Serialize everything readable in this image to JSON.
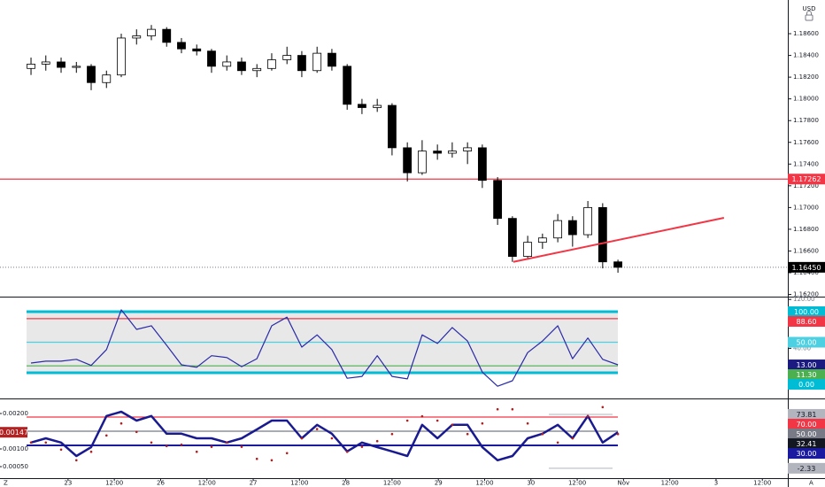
{
  "ui": {
    "left": "Z",
    "right": "A"
  },
  "chart_data": [
    {
      "type": "candlestick",
      "currency": "USD",
      "xlim": [
        -1.47,
        15.55
      ],
      "xticks": [
        {
          "value": 0,
          "label": "23"
        },
        {
          "value": 1,
          "label": "12:00"
        },
        {
          "value": 2,
          "label": "26"
        },
        {
          "value": 3,
          "label": "12:00"
        },
        {
          "value": 4,
          "label": "27"
        },
        {
          "value": 5,
          "label": "12:00"
        },
        {
          "value": 6,
          "label": "28"
        },
        {
          "value": 7,
          "label": "12:00"
        },
        {
          "value": 8,
          "label": "29"
        },
        {
          "value": 9,
          "label": "12:00"
        },
        {
          "value": 10,
          "label": "30"
        },
        {
          "value": 11,
          "label": "12:00"
        },
        {
          "value": 12,
          "label": "Nov"
        },
        {
          "value": 13,
          "label": "12:00"
        },
        {
          "value": 14,
          "label": "3"
        },
        {
          "value": 15,
          "label": "12:00"
        }
      ],
      "x": [
        -0.8,
        -0.48,
        -0.15,
        0.18,
        0.5,
        0.83,
        1.15,
        1.48,
        1.8,
        2.13,
        2.45,
        2.78,
        3.1,
        3.43,
        3.75,
        4.08,
        4.4,
        4.73,
        5.05,
        5.38,
        5.7,
        6.03,
        6.35,
        6.68,
        7,
        7.33,
        7.65,
        7.98,
        8.3,
        8.63,
        8.95,
        9.28,
        9.6,
        9.93,
        10.25,
        10.58,
        10.9,
        11.23,
        11.55,
        11.88
      ],
      "candles": [
        [
          1.1828,
          1.1838,
          1.1822,
          1.1832
        ],
        [
          1.1832,
          1.184,
          1.1826,
          1.1834
        ],
        [
          1.1834,
          1.1838,
          1.1824,
          1.1829
        ],
        [
          1.1829,
          1.1834,
          1.1824,
          1.183
        ],
        [
          1.183,
          1.1832,
          1.1808,
          1.1815
        ],
        [
          1.1815,
          1.1826,
          1.181,
          1.1822
        ],
        [
          1.1822,
          1.186,
          1.182,
          1.1856
        ],
        [
          1.1856,
          1.1864,
          1.185,
          1.1858
        ],
        [
          1.1858,
          1.1868,
          1.1854,
          1.1864
        ],
        [
          1.1864,
          1.1866,
          1.1848,
          1.1852
        ],
        [
          1.1852,
          1.1856,
          1.1842,
          1.1846
        ],
        [
          1.1846,
          1.185,
          1.184,
          1.1844
        ],
        [
          1.1844,
          1.1846,
          1.1824,
          1.183
        ],
        [
          1.183,
          1.184,
          1.1826,
          1.1834
        ],
        [
          1.1834,
          1.1838,
          1.1822,
          1.1826
        ],
        [
          1.1826,
          1.1832,
          1.182,
          1.1828
        ],
        [
          1.1828,
          1.1842,
          1.1826,
          1.1836
        ],
        [
          1.1836,
          1.1848,
          1.1832,
          1.184
        ],
        [
          1.184,
          1.1844,
          1.182,
          1.1826
        ],
        [
          1.1826,
          1.1848,
          1.1824,
          1.1842
        ],
        [
          1.1842,
          1.1846,
          1.1826,
          1.183
        ],
        [
          1.183,
          1.1832,
          1.179,
          1.1795
        ],
        [
          1.1795,
          1.18,
          1.1786,
          1.1792
        ],
        [
          1.1792,
          1.18,
          1.1788,
          1.1794
        ],
        [
          1.1794,
          1.1796,
          1.1748,
          1.1755
        ],
        [
          1.1755,
          1.176,
          1.1724,
          1.1732
        ],
        [
          1.1732,
          1.1762,
          1.173,
          1.1752
        ],
        [
          1.1752,
          1.1758,
          1.1744,
          1.175
        ],
        [
          1.175,
          1.176,
          1.1746,
          1.1752
        ],
        [
          1.1752,
          1.176,
          1.174,
          1.1755
        ],
        [
          1.1755,
          1.1758,
          1.1718,
          1.1725
        ],
        [
          1.1725,
          1.1728,
          1.1684,
          1.169
        ],
        [
          1.169,
          1.1692,
          1.165,
          1.1655
        ],
        [
          1.1655,
          1.1674,
          1.1652,
          1.1668
        ],
        [
          1.1668,
          1.1676,
          1.1662,
          1.1672
        ],
        [
          1.1672,
          1.1694,
          1.1668,
          1.1688
        ],
        [
          1.1688,
          1.1692,
          1.1664,
          1.1675
        ],
        [
          1.1675,
          1.1706,
          1.1672,
          1.17
        ],
        [
          1.17,
          1.1704,
          1.1644,
          1.165
        ],
        [
          1.165,
          1.1652,
          1.164,
          1.1645
        ]
      ],
      "up_color": "#ffffff",
      "down_color": "#000000",
      "ylim": [
        1.1618,
        1.1891
      ],
      "yticks": [
        {
          "value": 1.162,
          "label": "1.16200"
        },
        {
          "value": 1.164,
          "label": "1.16400"
        },
        {
          "value": 1.166,
          "label": "1.16600"
        },
        {
          "value": 1.168,
          "label": "1.16800"
        },
        {
          "value": 1.17,
          "label": "1.17000"
        },
        {
          "value": 1.172,
          "label": "1.17200"
        },
        {
          "value": 1.174,
          "label": "1.17400"
        },
        {
          "value": 1.176,
          "label": "1.17600"
        },
        {
          "value": 1.178,
          "label": "1.17800"
        },
        {
          "value": 1.18,
          "label": "1.18000"
        },
        {
          "value": 1.182,
          "label": "1.18200"
        },
        {
          "value": 1.184,
          "label": "1.18400"
        },
        {
          "value": 1.186,
          "label": "1.18600"
        }
      ],
      "hlines": [
        {
          "value": 1.17262,
          "label": "1.17262",
          "color": "#f23645"
        }
      ],
      "last_price": {
        "value": 1.1645,
        "label": "1.16450",
        "color": "#000000"
      },
      "trendline": {
        "points": [
          [
            9.62,
            1.165
          ],
          [
            14.17,
            1.16905
          ]
        ],
        "color": "#f23645"
      }
    },
    {
      "type": "line",
      "ylim": [
        -42,
        121.7
      ],
      "yticks": [
        {
          "value": 120,
          "label": "120.00"
        },
        {
          "value": 40,
          "label": "40.00"
        }
      ],
      "levels": [
        {
          "value": 100,
          "label": "100.00",
          "color": "#00bcd4"
        },
        {
          "value": 88.6,
          "label": "88.60",
          "color": "#f23645"
        },
        {
          "value": 50,
          "label": "50.00",
          "color": "#4dd0e1"
        },
        {
          "value": 11.3,
          "label": "11.30",
          "color": "#4caf50"
        },
        {
          "value": 0,
          "label": "0.00",
          "color": "#00bcd4"
        }
      ],
      "band_color": "#e8e8e8",
      "series": [
        {
          "color": "#2a2aa8",
          "values": [
            16,
            19,
            19,
            22,
            12,
            38,
            103,
            71,
            77,
            45,
            13,
            9,
            28,
            25,
            10,
            23,
            77,
            91,
            42,
            62,
            38,
            -9,
            -6,
            28,
            -6,
            -10,
            62,
            48,
            74,
            52,
            1,
            -22,
            -13,
            33,
            52,
            77,
            23,
            57,
            22,
            13
          ]
        }
      ],
      "last_value": {
        "value": 13,
        "label": "13.00",
        "color": "#1a1a80"
      }
    },
    {
      "type": "line",
      "ylim": [
        0.000175,
        0.002375
      ],
      "yticks": [
        {
          "value": 0.002,
          "label": "0.00200"
        },
        {
          "value": 0.001,
          "label": "0.00100"
        },
        {
          "value": 0.0005,
          "label": "0.00050"
        }
      ],
      "y2lim": [
        -16.25,
        93.75
      ],
      "levels": [
        {
          "value": 70,
          "label": "70.00",
          "color": "#f23645"
        },
        {
          "value": 50,
          "label": "50.00",
          "color": "#787b86"
        },
        {
          "value": 30,
          "label": "30.00",
          "color": "#1a1aa0"
        }
      ],
      "markers": [
        {
          "value": 73.81,
          "label": "73.81",
          "color": "#b2b5be"
        },
        {
          "value": 32.41,
          "label": "32.41",
          "color": "#131722"
        },
        {
          "value": -2.33,
          "label": "-2.33",
          "color": "#b2b5be"
        }
      ],
      "series": [
        {
          "color": "#1a1a90",
          "values": [
            0.00118,
            0.0013,
            0.00118,
            0.0008,
            0.00105,
            0.00193,
            0.00205,
            0.0018,
            0.00193,
            0.00143,
            0.00143,
            0.0013,
            0.0013,
            0.00118,
            0.0013,
            0.00155,
            0.0018,
            0.0018,
            0.0013,
            0.00168,
            0.00143,
            0.00093,
            0.00118,
            0.00105,
            0.00093,
            0.0008,
            0.00168,
            0.0013,
            0.00168,
            0.00168,
            0.00105,
            0.00068,
            0.0008,
            0.0013,
            0.00143,
            0.00168,
            0.0013,
            0.00193,
            0.00118,
            0.00147
          ]
        },
        {
          "color": "#b71c1c",
          "axis": "y2",
          "values": [
            34,
            34,
            24,
            9,
            21,
            44,
            61,
            49,
            34,
            29,
            31,
            21,
            28,
            34,
            28,
            11,
            9,
            19,
            40,
            53,
            40,
            21,
            28,
            36,
            46,
            65,
            71,
            65,
            59,
            46,
            61,
            81,
            81,
            61,
            46,
            34,
            40,
            71,
            84,
            46
          ]
        }
      ],
      "last_value": {
        "value": 0.00147,
        "label": "0.00147",
        "color": "#b22222"
      }
    }
  ]
}
